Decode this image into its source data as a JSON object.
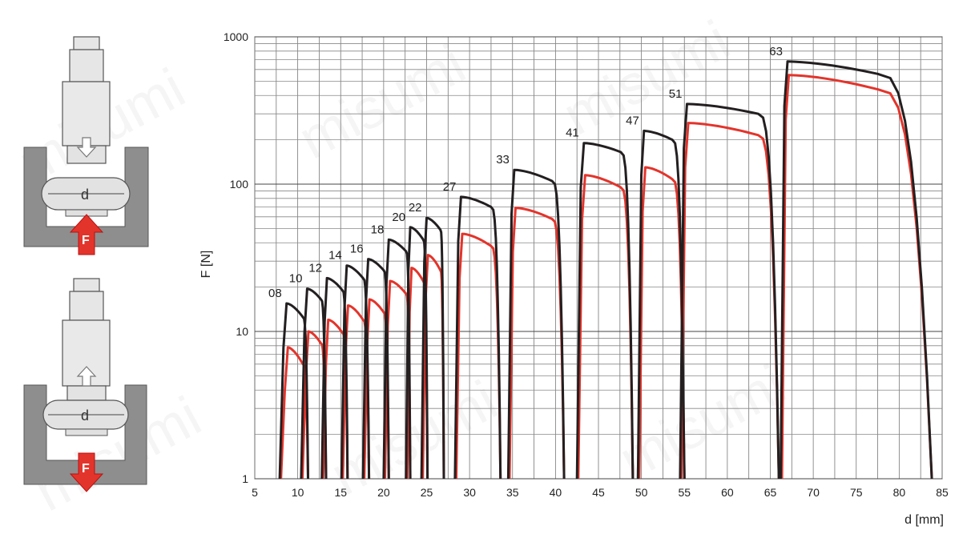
{
  "chart_data": {
    "type": "line",
    "xlabel": "d [mm]",
    "ylabel": "F [N]",
    "xlim": [
      5,
      85
    ],
    "ylim": [
      1,
      1000
    ],
    "y_scale": "log",
    "x_ticks": [
      "5",
      "10",
      "15",
      "20",
      "25",
      "30",
      "35",
      "40",
      "45",
      "50",
      "55",
      "60",
      "65",
      "70",
      "75",
      "80",
      "85"
    ],
    "y_ticks": [
      "1",
      "10",
      "100",
      "1000"
    ],
    "grid": true,
    "colors": {
      "dark": "#231f20",
      "red": "#e3342b"
    },
    "size_labels": [
      "08",
      "10",
      "12",
      "14",
      "16",
      "18",
      "20",
      "22",
      "27",
      "33",
      "41",
      "47",
      "51",
      "63"
    ],
    "curves": [
      {
        "label": "08",
        "x0": 7.9,
        "xr": 8.7,
        "xe": 10.6,
        "x1": 11.2,
        "dark": [
          15.5,
          12.5
        ],
        "red": [
          7.8,
          6.0
        ]
      },
      {
        "label": "10",
        "x0": 10.4,
        "xr": 11.1,
        "xe": 12.7,
        "x1": 13.3,
        "dark": [
          19.5,
          16.5
        ],
        "red": [
          10.0,
          8.3
        ]
      },
      {
        "label": "12",
        "x0": 12.8,
        "xr": 13.4,
        "xe": 15.2,
        "x1": 15.8,
        "dark": [
          23.0,
          19.0
        ],
        "red": [
          12.0,
          9.8
        ]
      },
      {
        "label": "14",
        "x0": 15.1,
        "xr": 15.7,
        "xe": 17.6,
        "x1": 18.3,
        "dark": [
          28.0,
          23.0
        ],
        "red": [
          15.0,
          12.0
        ]
      },
      {
        "label": "16",
        "x0": 17.6,
        "xr": 18.2,
        "xe": 20.0,
        "x1": 20.6,
        "dark": [
          31.0,
          26.0
        ],
        "red": [
          16.5,
          13.5
        ]
      },
      {
        "label": "18",
        "x0": 20.0,
        "xr": 20.6,
        "xe": 22.6,
        "x1": 23.1,
        "dark": [
          42.0,
          35.0
        ],
        "red": [
          22.0,
          18.0
        ]
      },
      {
        "label": "20",
        "x0": 22.6,
        "xr": 23.1,
        "xe": 24.6,
        "x1": 25.1,
        "dark": [
          51.0,
          42.0
        ],
        "red": [
          27.0,
          22.0
        ]
      },
      {
        "label": "22",
        "x0": 24.4,
        "xr": 25.0,
        "xe": 26.6,
        "x1": 27.0,
        "dark": [
          59.0,
          49.0
        ],
        "red": [
          33.0,
          26.0
        ]
      },
      {
        "label": "27",
        "x0": 28.3,
        "xr": 29.0,
        "xe": 32.5,
        "x1": 33.6,
        "dark": [
          82.0,
          70.0
        ],
        "red": [
          46.0,
          38.0
        ]
      },
      {
        "label": "33",
        "x0": 34.5,
        "xr": 35.2,
        "xe": 39.6,
        "x1": 41.0,
        "dark": [
          125.0,
          105.0
        ],
        "red": [
          69.0,
          58.0
        ]
      },
      {
        "label": "41",
        "x0": 42.5,
        "xr": 43.3,
        "xe": 47.6,
        "x1": 49.0,
        "dark": [
          190.0,
          165.0
        ],
        "red": [
          115.0,
          95.0
        ]
      },
      {
        "label": "47",
        "x0": 49.6,
        "xr": 50.3,
        "xe": 53.6,
        "x1": 55.0,
        "dark": [
          230.0,
          200.0
        ],
        "red": [
          130.0,
          108.0
        ]
      },
      {
        "label": "51",
        "x0": 54.5,
        "xr": 55.3,
        "xe": 63.6,
        "x1": 66.0,
        "dark": [
          350.0,
          300.0
        ],
        "red": [
          260.0,
          215.0
        ]
      },
      {
        "label": "63",
        "x0": 66.2,
        "xr": 67.0,
        "xe": 77.5,
        "x1": 83.8,
        "dark": [
          680.0,
          560.0
        ],
        "red": [
          550.0,
          440.0
        ]
      }
    ]
  },
  "diagram": {
    "top_d_label": "d",
    "top_force_label": "F",
    "bottom_d_label": "d",
    "bottom_force_label": "F",
    "watermark": "misumi"
  }
}
